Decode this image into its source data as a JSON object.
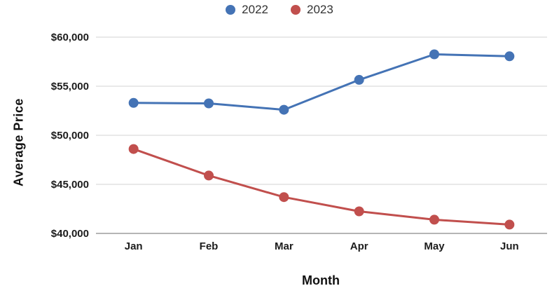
{
  "chart_data": {
    "type": "line",
    "title": "",
    "xlabel": "Month",
    "ylabel": "Average Price",
    "categories": [
      "Jan",
      "Feb",
      "Mar",
      "Apr",
      "May",
      "Jun"
    ],
    "series": [
      {
        "name": "2022",
        "color": "#4473b5",
        "values": [
          53300,
          53250,
          52600,
          55650,
          58250,
          58050
        ]
      },
      {
        "name": "2023",
        "color": "#c14f4d",
        "values": [
          48600,
          45900,
          43700,
          42250,
          41400,
          40900
        ]
      }
    ],
    "ylim": [
      40000,
      60000
    ],
    "yticks": [
      40000,
      45000,
      50000,
      55000,
      60000
    ],
    "ytick_labels": [
      "$40,000",
      "$45,000",
      "$50,000",
      "$55,000",
      "$60,000"
    ],
    "grid": "horizontal",
    "legend_position": "top-center",
    "marker": "circle"
  },
  "colors": {
    "gridline": "#e2e2e2",
    "axis_line": "#b5b5b5",
    "tick_text": "#1c1c1c",
    "legend_text": "#333333"
  }
}
